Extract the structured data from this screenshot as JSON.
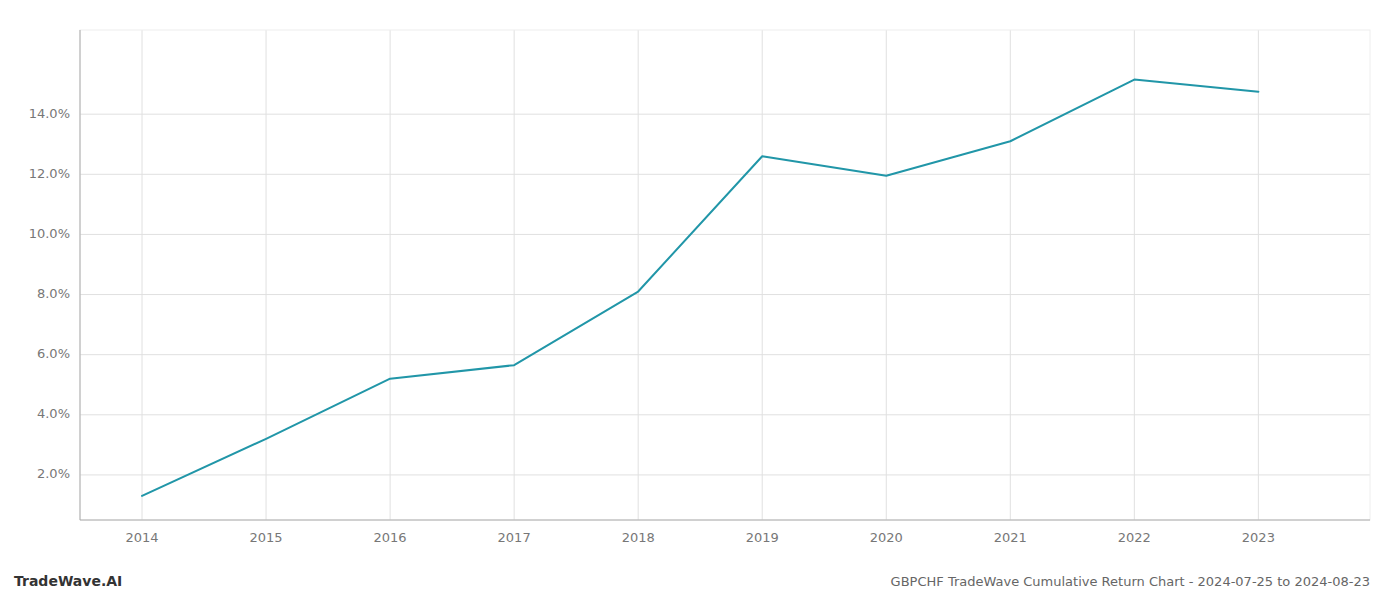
{
  "chart_data": {
    "type": "line",
    "title": "GBPCHF TradeWave Cumulative Return Chart - 2024-07-25 to 2024-08-23",
    "watermark": "TradeWave.AI",
    "x": [
      2014,
      2015,
      2016,
      2017,
      2018,
      2019,
      2020,
      2021,
      2022,
      2023
    ],
    "values": [
      1.3,
      3.2,
      5.2,
      5.65,
      8.1,
      12.6,
      11.95,
      13.1,
      15.15,
      14.75
    ],
    "color": "#2196a8",
    "xlim": [
      2013.5,
      2023.9
    ],
    "ylim": [
      0.5,
      16.8
    ],
    "xticks": [
      2014,
      2015,
      2016,
      2017,
      2018,
      2019,
      2020,
      2021,
      2022,
      2023
    ],
    "yticks": [
      {
        "value": 2.0,
        "label": "2.0%"
      },
      {
        "value": 4.0,
        "label": "4.0%"
      },
      {
        "value": 6.0,
        "label": "6.0%"
      },
      {
        "value": 8.0,
        "label": "8.0%"
      },
      {
        "value": 10.0,
        "label": "10.0%"
      },
      {
        "value": 12.0,
        "label": "12.0%"
      },
      {
        "value": 14.0,
        "label": "14.0%"
      }
    ],
    "grid": true
  }
}
